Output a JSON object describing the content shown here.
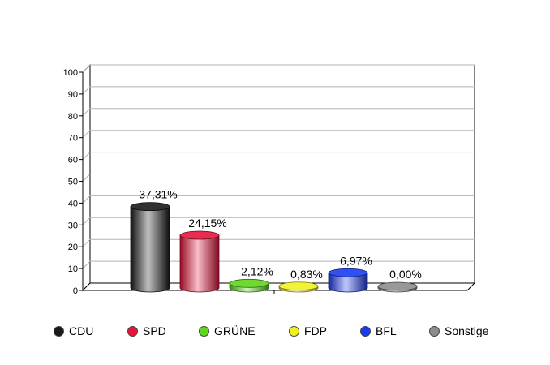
{
  "chart_data": {
    "type": "bar",
    "categories": [
      "CDU",
      "SPD",
      "GRÜNE",
      "FDP",
      "BFL",
      "Sonstige"
    ],
    "values": [
      37.31,
      24.15,
      2.12,
      0.83,
      6.97,
      0.0
    ],
    "data_labels": [
      "37,31%",
      "24,15%",
      "2,12%",
      "0,83%",
      "6,97%",
      "0,00%"
    ],
    "colors": [
      "#1a1a1a",
      "#e8143c",
      "#5ed61a",
      "#f0f020",
      "#1a3cf0",
      "#8c8c8c"
    ],
    "ylim": [
      0,
      100
    ],
    "yticks": [
      "0",
      "10",
      "20",
      "30",
      "40",
      "50",
      "60",
      "70",
      "80",
      "90",
      "100"
    ],
    "grid": true,
    "legend_position": "bottom"
  }
}
